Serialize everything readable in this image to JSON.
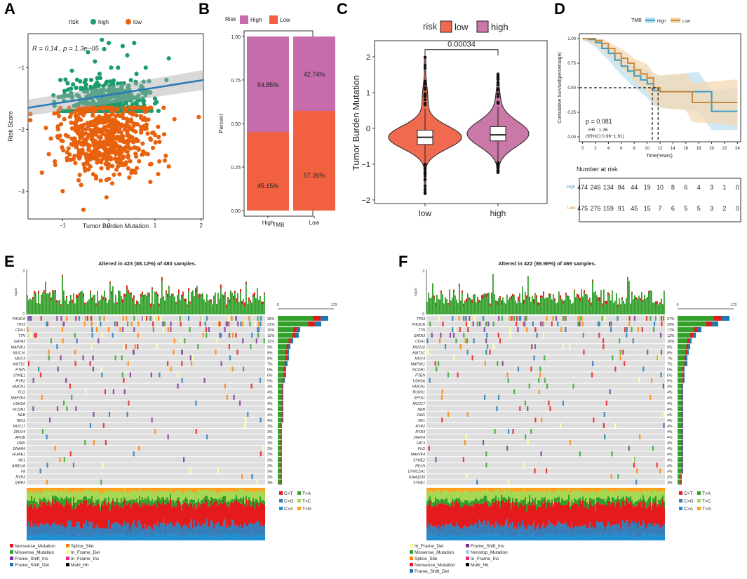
{
  "panel_letters": [
    "A",
    "B",
    "C",
    "D",
    "E",
    "F"
  ],
  "colors": {
    "high_green": "#1a9c6c",
    "low_orange": "#e8620e",
    "fit_line": "#2a7ab9",
    "bar_high": "#c66bab",
    "bar_low": "#f1603f",
    "violin_low": "#f06a4f",
    "violin_high": "#c978a8",
    "km_high": "#3c9bc6",
    "km_low": "#c98a3a",
    "snv_CtoT": "#e41a1c",
    "snv_CtoG": "#377eb8",
    "snv_CtoA": "#1f8fd6",
    "snv_TtoA": "#33a02c",
    "snv_TtoC": "#a6d854",
    "snv_TtoG": "#ff9f1c",
    "Nonsense_Mutation": "#e31a1c",
    "Missense_Mutation": "#33a02c",
    "Frame_Shift_Ins": "#7b3294",
    "Frame_Shift_Del": "#1f78b4",
    "Splice_Site": "#ff7f00",
    "In_Frame_Del": "#ffff99",
    "In_Frame_Ins": "#e7298a",
    "Nonstop_Mutation": "#a6cee3",
    "Multi_Hit": "#000000"
  },
  "chart_data": [
    {
      "id": "A",
      "type": "scatter",
      "legend_title": "risk",
      "legend": [
        "high",
        "low"
      ],
      "annotation_R": "R = 0.14 , p = 1.3e−05",
      "xlabel": "Tumor Burden Mutation",
      "ylabel": "Risk Score",
      "xlim": [
        -1.75,
        2.05
      ],
      "ylim": [
        -3.45,
        -0.45
      ],
      "xticks": [
        -1,
        0,
        1,
        2
      ],
      "yticks": [
        -3,
        -2,
        -1
      ],
      "fit": {
        "x": [
          -1.75,
          2.05
        ],
        "y": [
          -1.65,
          -1.2
        ]
      },
      "high_points": [
        [
          -0.3,
          -0.9
        ],
        [
          -0.1,
          -0.7
        ],
        [
          0.2,
          -1.0
        ],
        [
          0.1,
          -1.3
        ],
        [
          -0.2,
          -1.1
        ],
        [
          0.4,
          -0.8
        ],
        [
          -0.5,
          -1.2
        ],
        [
          0.6,
          -1.1
        ],
        [
          0.0,
          -0.6
        ],
        [
          -0.35,
          -1.4
        ],
        [
          0.25,
          -1.5
        ],
        [
          0.8,
          -1.0
        ],
        [
          1.3,
          -0.85
        ],
        [
          1.25,
          -1.2
        ],
        [
          -0.8,
          -1.05
        ],
        [
          -0.6,
          -1.35
        ],
        [
          0.45,
          -1.45
        ],
        [
          0.05,
          -1.0
        ],
        [
          -0.15,
          -0.55
        ],
        [
          0.3,
          -0.65
        ],
        [
          -1.2,
          -1.45
        ],
        [
          -1.05,
          -1.2
        ],
        [
          0.9,
          -1.4
        ],
        [
          -0.25,
          -1.6
        ],
        [
          0.15,
          -1.6
        ],
        [
          0.55,
          -0.6
        ],
        [
          -0.45,
          -0.75
        ],
        [
          0.7,
          -1.3
        ],
        [
          -0.7,
          -1.6
        ],
        [
          1.0,
          -1.5
        ]
      ],
      "low_points": [
        [
          -0.3,
          -2.0
        ],
        [
          0.1,
          -1.9
        ],
        [
          -0.5,
          -2.2
        ],
        [
          0.4,
          -2.1
        ],
        [
          -0.1,
          -2.4
        ],
        [
          0.2,
          -2.6
        ],
        [
          -0.7,
          -1.8
        ],
        [
          0.6,
          -2.3
        ],
        [
          -0.9,
          -2.5
        ],
        [
          0.8,
          -1.85
        ],
        [
          -1.1,
          -2.0
        ],
        [
          1.1,
          -2.2
        ],
        [
          0.0,
          -2.8
        ],
        [
          -0.4,
          -2.6
        ],
        [
          0.5,
          -2.7
        ],
        [
          -1.3,
          -2.4
        ],
        [
          1.3,
          -2.6
        ],
        [
          -0.6,
          -2.9
        ],
        [
          0.3,
          -1.75
        ],
        [
          -0.2,
          -2.2
        ],
        [
          -1.7,
          -1.75
        ],
        [
          -1.7,
          -1.85
        ],
        [
          1.95,
          -1.8
        ],
        [
          -0.55,
          -3.3
        ],
        [
          -0.05,
          -3.1
        ],
        [
          -1.0,
          -3.0
        ],
        [
          0.9,
          -2.85
        ],
        [
          -0.8,
          -2.15
        ],
        [
          0.7,
          -2.05
        ],
        [
          -1.45,
          -2.7
        ]
      ]
    },
    {
      "id": "B",
      "type": "bar",
      "legend_title": "Risk",
      "legend": [
        "High",
        "Low"
      ],
      "categories": [
        "High",
        "Low"
      ],
      "xlabel": "TMB",
      "ylabel": "Percent",
      "ylim": [
        0,
        1
      ],
      "yticks": [
        "0.00",
        "0.25",
        "0.50",
        "0.75",
        "1.00"
      ],
      "series": [
        {
          "name": "Low",
          "values": [
            0.4515,
            0.5726
          ],
          "labels": [
            "45.15%",
            "57.26%"
          ]
        },
        {
          "name": "High",
          "values": [
            0.5485,
            0.4274
          ],
          "labels": [
            "54.85%",
            "42.74%"
          ]
        }
      ]
    },
    {
      "id": "C",
      "type": "violin",
      "legend_title": "risk",
      "legend": [
        "low",
        "high"
      ],
      "categories": [
        "low",
        "high"
      ],
      "ylabel": "Tumor Burden Mutation",
      "ylim": [
        -2.1,
        2.45
      ],
      "yticks": [
        -2,
        -1,
        0,
        1,
        2
      ],
      "pvalue": "0.00034",
      "boxes": [
        {
          "q1": -0.45,
          "median": -0.25,
          "q3": -0.05,
          "min": -1.0,
          "max": 0.55
        },
        {
          "q1": -0.35,
          "median": -0.18,
          "q3": 0.05,
          "min": -0.95,
          "max": 0.6
        }
      ]
    },
    {
      "id": "D",
      "type": "line",
      "legend_title": "TMB",
      "legend": [
        "High",
        "Low"
      ],
      "xlabel": "Time(Years)",
      "ylabel": "Cumulative Survival(percentage)",
      "xlim": [
        0,
        24
      ],
      "ylim": [
        0,
        1
      ],
      "xticks": [
        0,
        2,
        4,
        6,
        8,
        10,
        12,
        14,
        16,
        18,
        20,
        22,
        24
      ],
      "yticks": [
        "0.00",
        "0.25",
        "0.50",
        "0.75",
        "1.00"
      ],
      "stats": [
        "p = 0.081",
        "HR : 1.36",
        "(95%CI:0.96−1.91)"
      ],
      "median": [
        10.8,
        11.7
      ],
      "series": [
        {
          "name": "High",
          "x": [
            0,
            1,
            2,
            3,
            4,
            5,
            6,
            7,
            8,
            9,
            10,
            11,
            12,
            14,
            16,
            18,
            20,
            22,
            24
          ],
          "y": [
            1,
            0.99,
            0.96,
            0.9,
            0.85,
            0.78,
            0.72,
            0.67,
            0.62,
            0.58,
            0.54,
            0.47,
            0.46,
            0.46,
            0.46,
            0.46,
            0.26,
            0.26,
            0.26
          ]
        },
        {
          "name": "Low",
          "x": [
            0,
            1,
            2,
            3,
            4,
            5,
            6,
            7,
            8,
            9,
            10,
            11,
            12,
            14,
            16,
            17,
            20,
            22,
            24
          ],
          "y": [
            1,
            1,
            0.98,
            0.95,
            0.9,
            0.85,
            0.8,
            0.75,
            0.68,
            0.64,
            0.6,
            0.5,
            0.46,
            0.46,
            0.46,
            0.35,
            0.35,
            0.35,
            0.35
          ]
        }
      ],
      "risk_table_title": "Number at risk",
      "risk_rows": [
        {
          "name": "High",
          "values": [
            "474",
            "246",
            "134",
            "84",
            "44",
            "19",
            "10",
            "8",
            "6",
            "4",
            "3",
            "1",
            "0"
          ]
        },
        {
          "name": "Low",
          "values": [
            "475",
            "276",
            "159",
            "91",
            "45",
            "15",
            "7",
            "6",
            "5",
            "5",
            "3",
            "2",
            "0"
          ]
        }
      ]
    },
    {
      "id": "E",
      "type": "heatmap",
      "title": "Altered in 423 (88.12%) of 480 samples.",
      "tmb_axis": [
        "3",
        "0",
        "log10"
      ],
      "bar_axis": [
        "0",
        "173"
      ],
      "genes": [
        "PIK3CA",
        "TP53",
        "CDH1",
        "TTN",
        "GATA3",
        "MAP3K1",
        "MUC16",
        "MUC4",
        "KMT2C",
        "PTEN",
        "SYNE1",
        "RYR2",
        "HMCN1",
        "FLG",
        "MAP2K4",
        "USH2A",
        "NCOR1",
        "NEB",
        "TBX3",
        "MUC17",
        "ZFHX4",
        "APOB",
        "DMD",
        "DNAH9",
        "HUWE1",
        "NF1",
        "ARID1A",
        "F8",
        "RYR3",
        "XIRP2"
      ],
      "freqs": [
        "36%",
        "31%",
        "16%",
        "15%",
        "11%",
        "9%",
        "8%",
        "8%",
        "7%",
        "6%",
        "6%",
        "5%",
        "4%",
        "4%",
        "4%",
        "4%",
        "4%",
        "4%",
        "4%",
        "3%",
        "3%",
        "3%",
        "3%",
        "3%",
        "3%",
        "3%",
        "3%",
        "3%",
        "3%",
        "3%"
      ],
      "snv_legend": [
        "C>T",
        "T>A",
        "C>G",
        "T>C",
        "C>A",
        "T>G"
      ],
      "variant_legend": [
        "Nonsense_Mutation",
        "Splice_Site",
        "Missense_Mutation",
        "In_Frame_Del",
        "Frame_Shift_Ins",
        "In_Frame_Ins",
        "Frame_Shift_Del",
        "Multi_Hit"
      ]
    },
    {
      "id": "F",
      "type": "heatmap",
      "title": "Altered in 422 (89.98%) of 469 samples.",
      "tmb_axis": [
        "3",
        "0",
        "log10"
      ],
      "bar_axis": [
        "0",
        "173"
      ],
      "genes": [
        "TP53",
        "PIK3CA",
        "TTN",
        "GATA3",
        "CDH1",
        "MUC16",
        "KMT2C",
        "MUC4",
        "MAP3K1",
        "NCOR1",
        "PTEN",
        "USH2A",
        "HMCN1",
        "RUNX1",
        "SPTA1",
        "MUC17",
        "NEB",
        "DMD",
        "NF1",
        "RYR2",
        "RYR3",
        "ZFHX4",
        "FAT3",
        "FLG",
        "MAP2K4",
        "SYNE2",
        "RELN",
        "DYNC2H1",
        "KIAA1109",
        "SYNE1"
      ],
      "freqs": [
        "37%",
        "29%",
        "17%",
        "13%",
        "10%",
        "9%",
        "8%",
        "7%",
        "7%",
        "5%",
        "5%",
        "5%",
        "4%",
        "4%",
        "4%",
        "4%",
        "4%",
        "4%",
        "4%",
        "4%",
        "4%",
        "4%",
        "4%",
        "4%",
        "4%",
        "4%",
        "4%",
        "4%",
        "3%",
        "3%"
      ],
      "snv_legend": [
        "C>T",
        "T>A",
        "C>G",
        "T>C",
        "C>A",
        "T>G"
      ],
      "variant_legend": [
        "In_Frame_Del",
        "Frame_Shift_Ins",
        "Missense_Mutation",
        "Nonstop_Mutation",
        "Splice_Site",
        "In_Frame_Ins",
        "Nonsense_Mutation",
        "Multi_Hit",
        "Frame_Shift_Del"
      ]
    }
  ]
}
